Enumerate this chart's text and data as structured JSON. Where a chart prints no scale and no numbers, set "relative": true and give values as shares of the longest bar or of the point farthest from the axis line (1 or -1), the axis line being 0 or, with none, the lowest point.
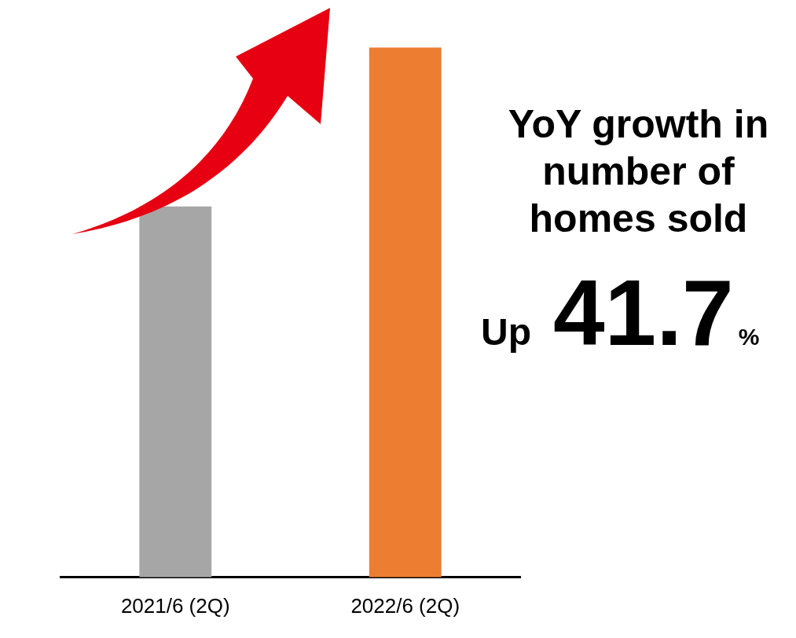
{
  "chart_data": {
    "type": "bar",
    "relative": true,
    "categories": [
      "2021/6 (2Q)",
      "2022/6 (2Q)"
    ],
    "values": [
      0.7,
      1
    ],
    "colors": [
      "#a6a6a6",
      "#ed7d31"
    ],
    "annotations": [
      "YoY growth in number of homes sold",
      "Up",
      "41.7",
      "%"
    ]
  }
}
